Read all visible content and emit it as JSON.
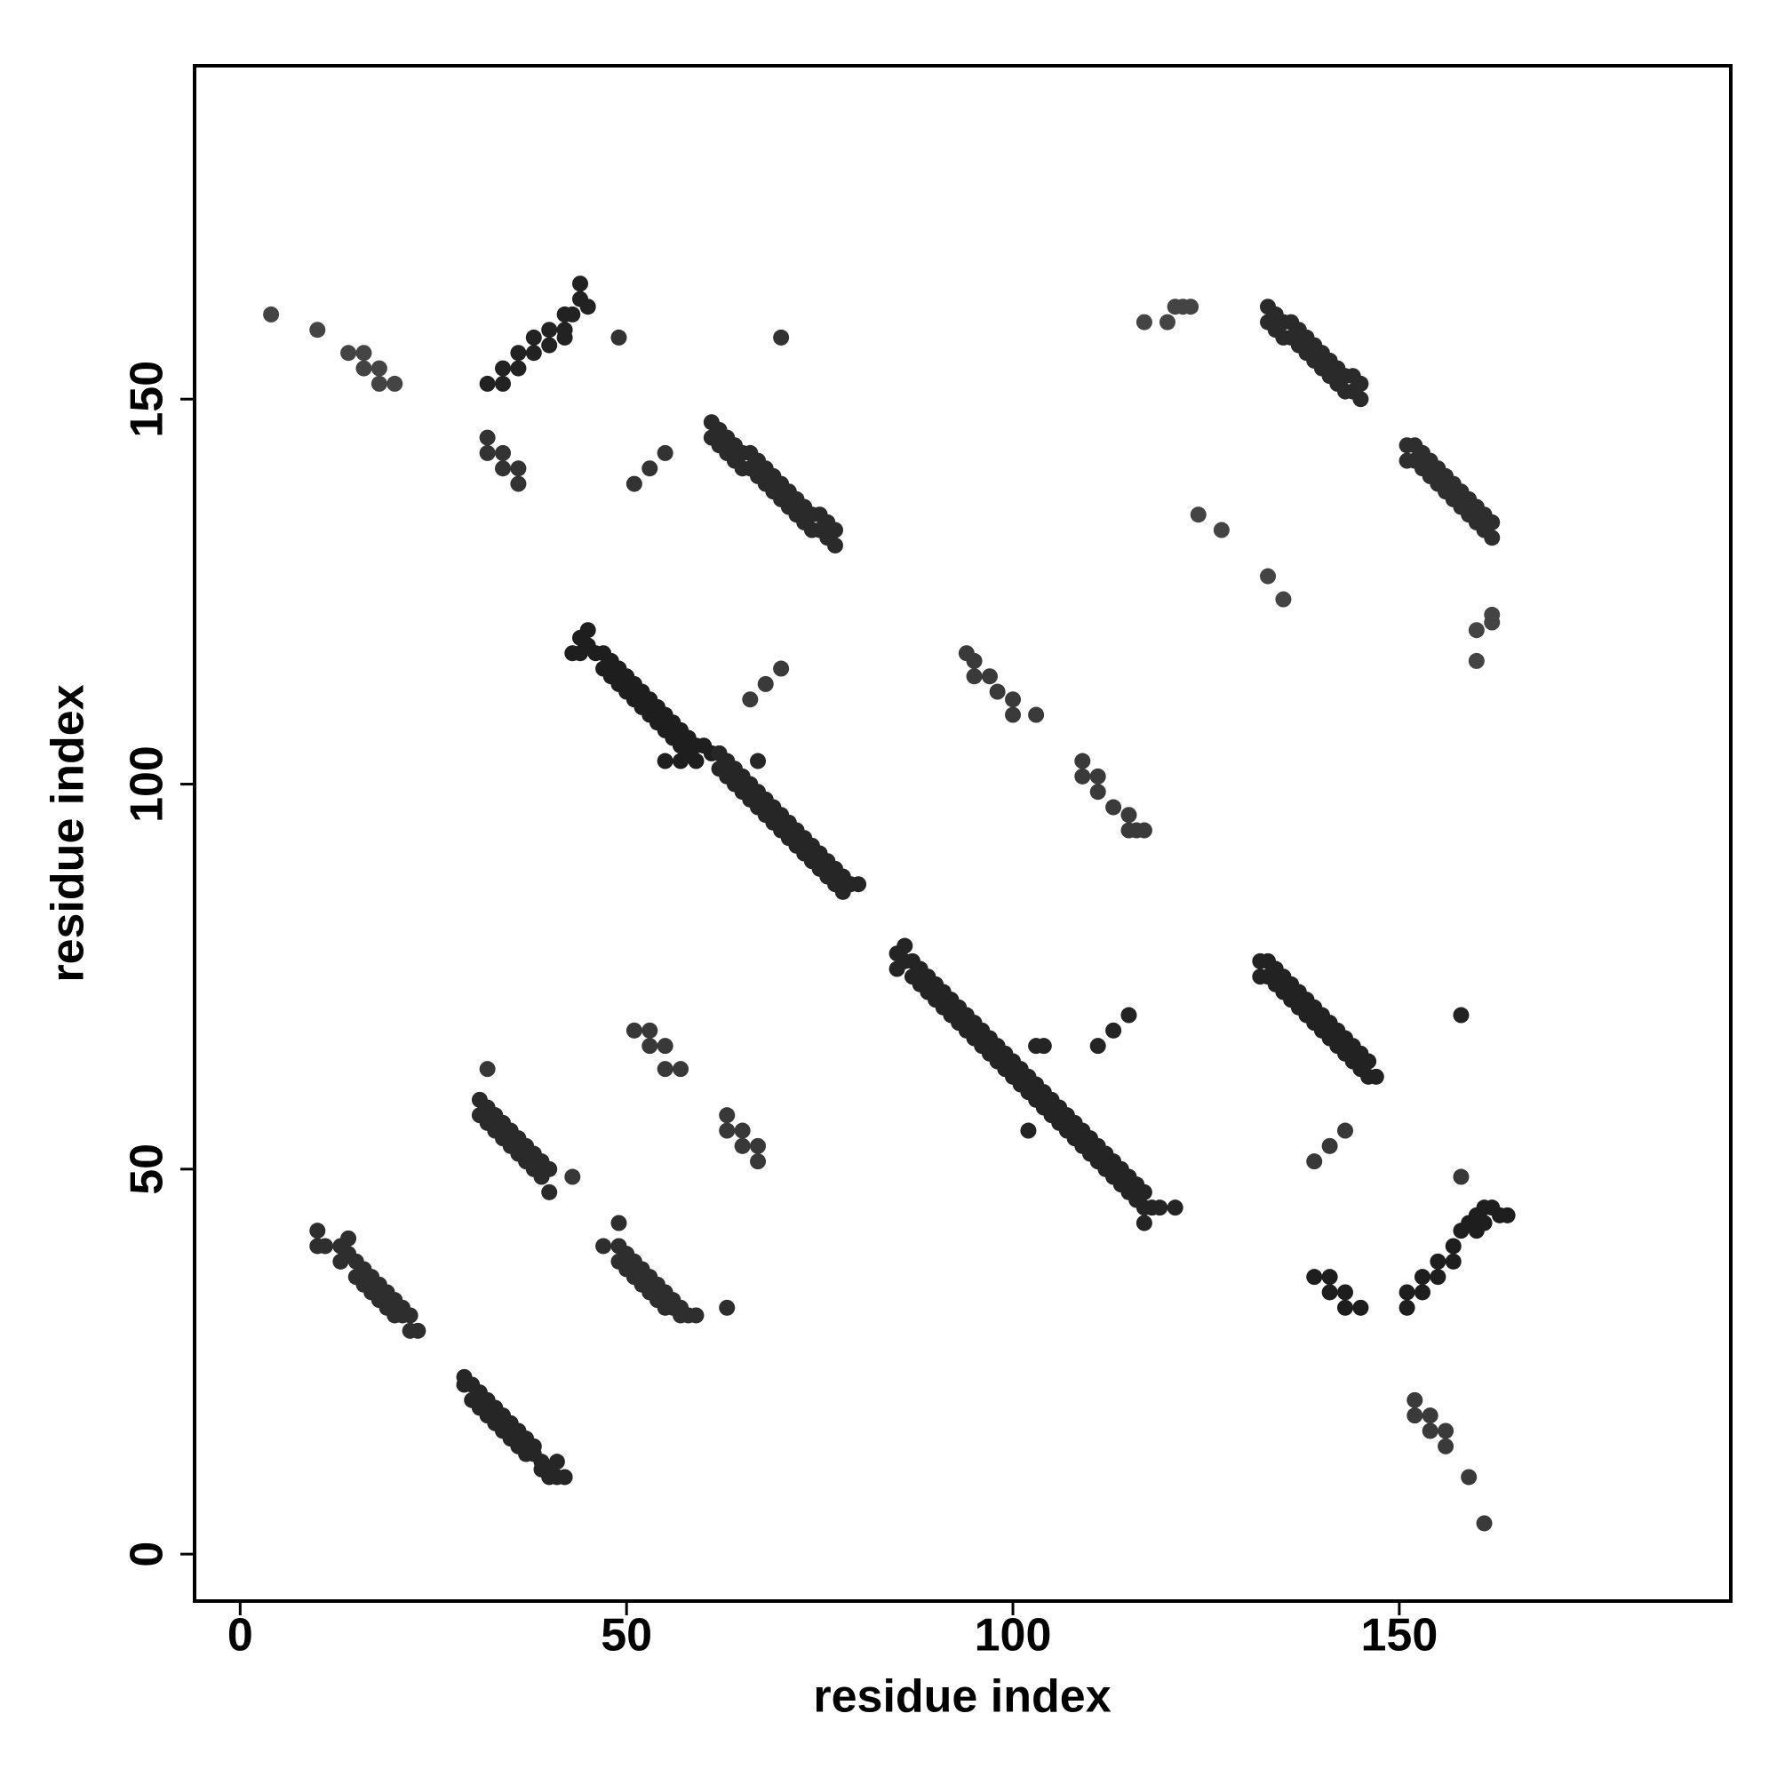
{
  "chart_data": {
    "type": "scatter",
    "x_label": "residue index",
    "y_label": "residue index",
    "xlim": [
      -5.9,
      192.9
    ],
    "ylim": [
      -6.1,
      193.3
    ],
    "xticks": [
      0,
      50,
      100,
      150
    ],
    "yticks": [
      0,
      50,
      100,
      150
    ],
    "series": [
      {
        "color": "#444444",
        "x": [
          4,
          10,
          14,
          16,
          16,
          18,
          18,
          20
        ],
        "values": [
          161,
          159,
          156,
          156,
          154,
          154,
          152,
          152
        ]
      },
      {
        "color": "#222222",
        "x": [
          32,
          34,
          34,
          36,
          36,
          38,
          38,
          40,
          40,
          42,
          42,
          43,
          44,
          44,
          45,
          42
        ],
        "values": [
          152,
          152,
          154,
          154,
          156,
          156,
          158,
          157,
          159,
          159,
          161,
          161,
          163,
          165,
          162,
          158
        ]
      },
      {
        "color": "#333333",
        "x": [
          32,
          32,
          34,
          34,
          36,
          36,
          49,
          70,
          51,
          53,
          55
        ],
        "values": [
          145,
          143,
          143,
          141,
          141,
          139,
          158,
          158,
          139,
          141,
          143
        ]
      },
      {
        "color": "#2a2a2a",
        "x": [
          61,
          61,
          62,
          62,
          63,
          63,
          64,
          64,
          65,
          65,
          66,
          66,
          67,
          67,
          68,
          68,
          69,
          69,
          70,
          70,
          71,
          71,
          72,
          72,
          73,
          73,
          74,
          74,
          75,
          75,
          76,
          76,
          77,
          77
        ],
        "values": [
          147,
          145,
          146,
          144,
          145,
          143,
          144,
          142,
          143,
          141,
          143,
          141,
          142,
          140,
          141,
          139,
          140,
          138,
          139,
          137,
          138,
          136,
          137,
          135,
          136,
          134,
          135,
          133,
          135,
          133,
          134,
          132,
          133,
          131
        ]
      },
      {
        "color": "#444444",
        "x": [
          117,
          120,
          121,
          122,
          123,
          124,
          127,
          133,
          135,
          160,
          162,
          162,
          160
        ],
        "values": [
          160,
          160,
          162,
          162,
          162,
          135,
          133,
          127,
          124,
          120,
          121,
          122,
          116
        ]
      },
      {
        "color": "#2a2a2a",
        "x": [
          133,
          133,
          134,
          134,
          135,
          135,
          136,
          136,
          137,
          137,
          138,
          138,
          139,
          139,
          140,
          140,
          141,
          141,
          142,
          142,
          143,
          143,
          144,
          144,
          145,
          145
        ],
        "values": [
          162,
          160,
          161,
          159,
          160,
          158,
          160,
          158,
          159,
          157,
          158,
          156,
          157,
          155,
          156,
          154,
          155,
          153,
          154,
          152,
          153,
          151,
          153,
          151,
          152,
          150
        ]
      },
      {
        "color": "#2e2e2e",
        "x": [
          151,
          151,
          152,
          152,
          153,
          153,
          154,
          154,
          155,
          155,
          156,
          156,
          157,
          157,
          158,
          158,
          159,
          159,
          160,
          160,
          161,
          161,
          162,
          162
        ],
        "values": [
          144,
          142,
          144,
          142,
          143,
          141,
          142,
          140,
          141,
          139,
          140,
          138,
          139,
          137,
          138,
          136,
          137,
          135,
          136,
          134,
          135,
          133,
          134,
          132
        ]
      },
      {
        "color": "#1e1e1e",
        "x": [
          43,
          44,
          44,
          45,
          45,
          46,
          47,
          47,
          48,
          48,
          49,
          49,
          50,
          50,
          51,
          51,
          52,
          52,
          53,
          53,
          54,
          54,
          55,
          55,
          56,
          56,
          57,
          57,
          58,
          58,
          59,
          59,
          60,
          61,
          55,
          57,
          57
        ],
        "values": [
          117,
          117,
          119,
          118,
          120,
          117,
          117,
          115,
          116,
          114,
          115,
          113,
          114,
          112,
          113,
          111,
          112,
          110,
          111,
          109,
          110,
          108,
          109,
          107,
          108,
          106,
          107,
          105,
          106,
          104,
          105,
          103,
          105,
          104,
          103,
          103,
          105
        ]
      },
      {
        "color": "#262626",
        "x": [
          62,
          62,
          63,
          63,
          64,
          64,
          65,
          65,
          66,
          66,
          67,
          67,
          68,
          68,
          69,
          69,
          70,
          70,
          71,
          71,
          72,
          72,
          73,
          73,
          74,
          74,
          75,
          75,
          76,
          76,
          77,
          77,
          78,
          78,
          79,
          80,
          67
        ],
        "values": [
          104,
          102,
          103,
          101,
          102,
          100,
          101,
          99,
          100,
          98,
          99,
          97,
          98,
          96,
          97,
          95,
          96,
          94,
          95,
          93,
          94,
          92,
          93,
          91,
          92,
          90,
          91,
          89,
          90,
          88,
          89,
          87,
          88,
          86,
          87,
          87,
          103
        ]
      },
      {
        "color": "#3a3a3a",
        "x": [
          66,
          68,
          70,
          94,
          95,
          95,
          97,
          98,
          100,
          100,
          103,
          109,
          109,
          111,
          111,
          113,
          115,
          115,
          116,
          117
        ],
        "values": [
          111,
          113,
          115,
          117,
          116,
          114,
          114,
          112,
          111,
          109,
          109,
          103,
          101,
          101,
          99,
          97,
          96,
          94,
          94,
          94
        ]
      },
      {
        "color": "#242424",
        "x": [
          85,
          85,
          86,
          86,
          87,
          87,
          88,
          88,
          89,
          89,
          90,
          90,
          91,
          91,
          92,
          92,
          93,
          93,
          94,
          94,
          95,
          95,
          96,
          96,
          97,
          97,
          98,
          98,
          99,
          99,
          100,
          100,
          101,
          101,
          102,
          102,
          103,
          103,
          104,
          104,
          105,
          105,
          106,
          106,
          107,
          107,
          108,
          108,
          109,
          109,
          110,
          110,
          111,
          111,
          112,
          112,
          113,
          113,
          114,
          114,
          115,
          115,
          116,
          116,
          117,
          117,
          118,
          119,
          121,
          103,
          104,
          102,
          117,
          111,
          113,
          115
        ],
        "values": [
          78,
          76,
          79,
          77,
          77,
          75,
          76,
          74,
          75,
          73,
          74,
          72,
          73,
          71,
          72,
          70,
          71,
          69,
          70,
          68,
          69,
          67,
          68,
          66,
          67,
          65,
          66,
          64,
          65,
          63,
          64,
          62,
          63,
          61,
          62,
          60,
          61,
          59,
          60,
          58,
          59,
          57,
          58,
          56,
          57,
          55,
          56,
          54,
          55,
          53,
          54,
          52,
          53,
          51,
          52,
          50,
          51,
          49,
          50,
          48,
          49,
          47,
          48,
          46,
          47,
          45,
          45,
          45,
          45,
          66,
          66,
          55,
          43,
          66,
          68,
          70
        ]
      },
      {
        "color": "#222222",
        "x": [
          132,
          132,
          133,
          133,
          134,
          134,
          135,
          135,
          136,
          136,
          137,
          137,
          138,
          138,
          139,
          139,
          140,
          140,
          141,
          141,
          142,
          142,
          143,
          143,
          144,
          144,
          145,
          145,
          146,
          146,
          147,
          158
        ],
        "values": [
          77,
          75,
          77,
          75,
          76,
          74,
          75,
          73,
          74,
          72,
          73,
          71,
          72,
          70,
          71,
          69,
          70,
          68,
          69,
          67,
          68,
          66,
          67,
          65,
          66,
          64,
          65,
          63,
          64,
          62,
          62,
          70
        ]
      },
      {
        "color": "#383838",
        "x": [
          51,
          53,
          53,
          55,
          55,
          57,
          63,
          63,
          65,
          65,
          67,
          67,
          32,
          43,
          139,
          141,
          143,
          158
        ],
        "values": [
          68,
          68,
          66,
          66,
          63,
          63,
          57,
          55,
          55,
          53,
          53,
          51,
          63,
          49,
          51,
          53,
          55,
          49
        ]
      },
      {
        "color": "#2a2a2a",
        "x": [
          31,
          31,
          32,
          32,
          33,
          33,
          34,
          34,
          35,
          35,
          36,
          36,
          37,
          37,
          38,
          38,
          39,
          39,
          40,
          40
        ],
        "values": [
          59,
          57,
          58,
          56,
          57,
          55,
          56,
          54,
          55,
          53,
          54,
          52,
          53,
          51,
          52,
          50,
          51,
          49,
          50,
          47
        ]
      },
      {
        "color": "#1e1e1e",
        "x": [
          151,
          151,
          153,
          153,
          155,
          155,
          157,
          157,
          158,
          159,
          160,
          160,
          161,
          161,
          162,
          163,
          164,
          139,
          141,
          141,
          143,
          143,
          145
        ],
        "values": [
          34,
          32,
          36,
          34,
          38,
          36,
          40,
          38,
          42,
          43,
          42,
          44,
          43,
          45,
          45,
          44,
          44,
          36,
          36,
          34,
          34,
          32,
          32
        ]
      },
      {
        "color": "#2e2e2e",
        "x": [
          10,
          10,
          11,
          13,
          13,
          14,
          14,
          15,
          15,
          16,
          16,
          17,
          17,
          18,
          18,
          19,
          19,
          20,
          20,
          21,
          21,
          22,
          22,
          23
        ],
        "values": [
          42,
          40,
          40,
          40,
          38,
          41,
          39,
          38,
          36,
          37,
          35,
          36,
          34,
          35,
          33,
          34,
          32,
          33,
          31,
          32,
          31,
          31,
          29,
          29
        ]
      },
      {
        "color": "#2e2e2e",
        "x": [
          47,
          49,
          49,
          50,
          50,
          51,
          51,
          52,
          52,
          53,
          53,
          54,
          54,
          55,
          55,
          56,
          56,
          57,
          57,
          58,
          59,
          49,
          63
        ],
        "values": [
          40,
          40,
          38,
          39,
          37,
          38,
          36,
          37,
          35,
          36,
          34,
          35,
          33,
          34,
          32,
          33,
          32,
          32,
          31,
          31,
          31,
          43,
          32
        ]
      },
      {
        "color": "#262626",
        "x": [
          29,
          29,
          30,
          30,
          31,
          31,
          32,
          32,
          33,
          33,
          34,
          34,
          35,
          35,
          36,
          36,
          37,
          37,
          38,
          38,
          39,
          39,
          40,
          40,
          41,
          41,
          42
        ],
        "values": [
          23,
          22,
          22,
          20,
          21,
          19,
          20,
          18,
          19,
          17,
          18,
          16,
          17,
          15,
          16,
          14,
          15,
          13,
          14,
          13,
          12,
          11,
          11,
          10,
          12,
          10,
          10
        ]
      },
      {
        "color": "#3a3a3a",
        "x": [
          152,
          152,
          154,
          154,
          156,
          156,
          159,
          161
        ],
        "values": [
          20,
          18,
          18,
          16,
          16,
          14,
          10,
          4
        ]
      }
    ]
  }
}
